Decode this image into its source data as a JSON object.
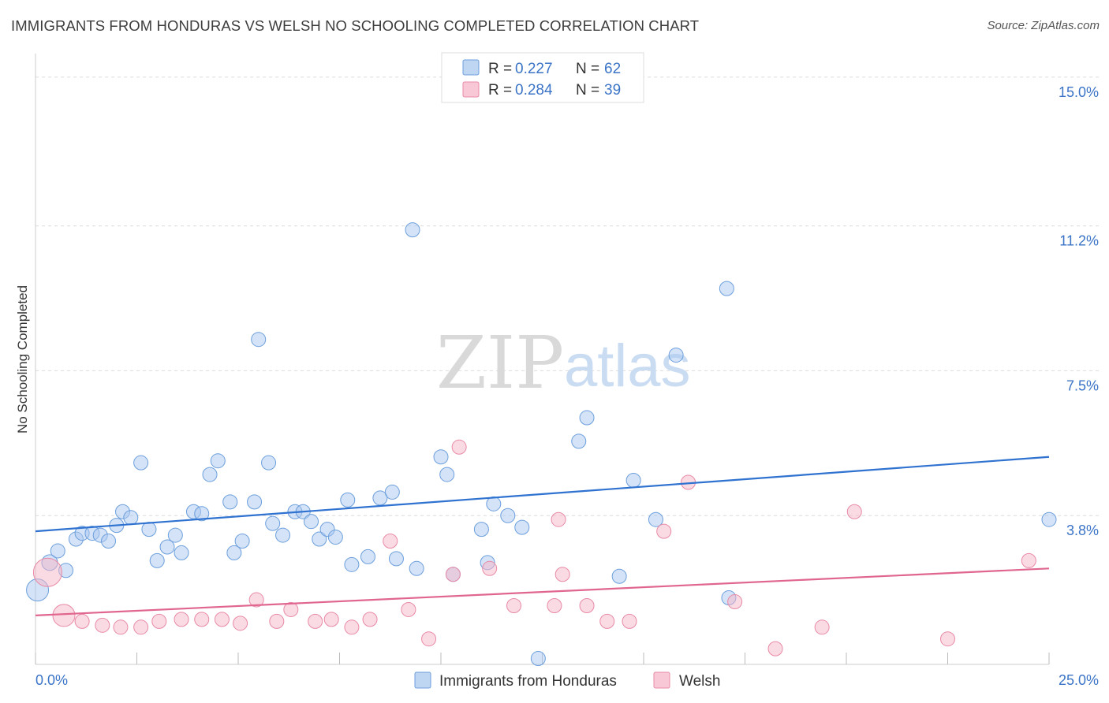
{
  "header": {
    "title": "IMMIGRANTS FROM HONDURAS VS WELSH NO SCHOOLING COMPLETED CORRELATION CHART",
    "source": "Source: ZipAtlas.com"
  },
  "watermark": {
    "zip": "ZIP",
    "atlas": "atlas"
  },
  "legend_top": [
    {
      "r_label": "R = ",
      "r_value": "0.227",
      "n_label": "N = ",
      "n_value": "62",
      "color": "#a9c8ef"
    },
    {
      "r_label": "R = ",
      "r_value": "0.284",
      "n_label": "N = ",
      "n_value": "39",
      "color": "#f5b6c8"
    }
  ],
  "chart_data": {
    "type": "scatter",
    "title": "IMMIGRANTS FROM HONDURAS VS WELSH NO SCHOOLING COMPLETED CORRELATION CHART",
    "xlabel": "",
    "ylabel": "No Schooling Completed",
    "xlim": [
      0,
      25
    ],
    "ylim": [
      0,
      15.4
    ],
    "x_tick_labels": [
      "0.0%",
      "25.0%"
    ],
    "y_ticks": [
      3.8,
      7.5,
      11.2,
      15.0
    ],
    "y_tick_labels": [
      "3.8%",
      "7.5%",
      "11.2%",
      "15.0%"
    ],
    "grid": true,
    "legend_position": "bottom-center",
    "series": [
      {
        "name": "Immigrants from Honduras",
        "color": "#a9c8ef",
        "stroke": "#6c9fdc",
        "trend_color": "#2f72d0",
        "trend": {
          "x0": 0,
          "y0": 3.4,
          "x1": 25,
          "y1": 5.3
        },
        "points": [
          [
            0.05,
            1.9
          ],
          [
            0.35,
            2.6
          ],
          [
            0.55,
            2.9
          ],
          [
            0.75,
            2.4
          ],
          [
            1.0,
            3.2
          ],
          [
            1.15,
            3.35
          ],
          [
            1.4,
            3.35
          ],
          [
            1.6,
            3.3
          ],
          [
            1.8,
            3.15
          ],
          [
            2.0,
            3.55
          ],
          [
            2.15,
            3.9
          ],
          [
            2.35,
            3.75
          ],
          [
            2.6,
            5.15
          ],
          [
            2.8,
            3.45
          ],
          [
            3.0,
            2.65
          ],
          [
            3.25,
            3.0
          ],
          [
            3.45,
            3.3
          ],
          [
            3.6,
            2.85
          ],
          [
            3.9,
            3.9
          ],
          [
            4.1,
            3.85
          ],
          [
            4.3,
            4.85
          ],
          [
            4.5,
            5.2
          ],
          [
            4.8,
            4.15
          ],
          [
            4.9,
            2.85
          ],
          [
            5.1,
            3.15
          ],
          [
            5.4,
            4.15
          ],
          [
            5.5,
            8.3
          ],
          [
            5.75,
            5.15
          ],
          [
            5.85,
            3.6
          ],
          [
            6.1,
            3.3
          ],
          [
            6.4,
            3.9
          ],
          [
            6.6,
            3.9
          ],
          [
            6.8,
            3.65
          ],
          [
            7.0,
            3.2
          ],
          [
            7.2,
            3.45
          ],
          [
            7.4,
            3.25
          ],
          [
            7.7,
            4.2
          ],
          [
            7.8,
            2.55
          ],
          [
            8.2,
            2.75
          ],
          [
            8.5,
            4.25
          ],
          [
            8.8,
            4.4
          ],
          [
            8.9,
            2.7
          ],
          [
            9.3,
            11.1
          ],
          [
            9.4,
            2.45
          ],
          [
            10.0,
            5.3
          ],
          [
            10.15,
            4.85
          ],
          [
            10.3,
            2.3
          ],
          [
            11.0,
            3.45
          ],
          [
            11.15,
            2.6
          ],
          [
            11.3,
            4.1
          ],
          [
            11.65,
            3.8
          ],
          [
            12.0,
            3.5
          ],
          [
            12.4,
            0.15
          ],
          [
            13.4,
            5.7
          ],
          [
            13.6,
            6.3
          ],
          [
            14.4,
            2.25
          ],
          [
            14.75,
            4.7
          ],
          [
            15.3,
            3.7
          ],
          [
            15.8,
            7.9
          ],
          [
            17.05,
            9.6
          ],
          [
            17.1,
            1.7
          ],
          [
            25.0,
            3.7
          ]
        ],
        "sizes": [
          14,
          10,
          9,
          9,
          9,
          9,
          9,
          9,
          9,
          9,
          9,
          9,
          9,
          9,
          9,
          9,
          9,
          9,
          9,
          9,
          9,
          9,
          9,
          9,
          9,
          9,
          9,
          9,
          9,
          9,
          9,
          9,
          9,
          9,
          9,
          9,
          9,
          9,
          9,
          9,
          9,
          9,
          9,
          9,
          9,
          9,
          9,
          9,
          9,
          9,
          9,
          9,
          9,
          9,
          9,
          9,
          9,
          9,
          9,
          9,
          9,
          9
        ]
      },
      {
        "name": "Welsh",
        "color": "#f5b6c8",
        "stroke": "#e88aa6",
        "trend_color": "#e0668f",
        "trend": {
          "x0": 0,
          "y0": 1.25,
          "x1": 25,
          "y1": 2.45
        },
        "points": [
          [
            0.3,
            2.35
          ],
          [
            0.7,
            1.25
          ],
          [
            1.15,
            1.1
          ],
          [
            1.65,
            1.0
          ],
          [
            2.1,
            0.95
          ],
          [
            2.6,
            0.95
          ],
          [
            3.05,
            1.1
          ],
          [
            3.6,
            1.15
          ],
          [
            4.1,
            1.15
          ],
          [
            4.6,
            1.15
          ],
          [
            5.05,
            1.05
          ],
          [
            5.45,
            1.65
          ],
          [
            5.95,
            1.1
          ],
          [
            6.3,
            1.4
          ],
          [
            6.9,
            1.1
          ],
          [
            7.3,
            1.15
          ],
          [
            7.8,
            0.95
          ],
          [
            8.25,
            1.15
          ],
          [
            8.75,
            3.15
          ],
          [
            9.2,
            1.4
          ],
          [
            9.7,
            0.65
          ],
          [
            10.3,
            2.3
          ],
          [
            10.45,
            5.55
          ],
          [
            11.2,
            2.45
          ],
          [
            11.8,
            1.5
          ],
          [
            12.8,
            1.5
          ],
          [
            12.9,
            3.7
          ],
          [
            13.0,
            2.3
          ],
          [
            13.6,
            1.5
          ],
          [
            14.1,
            1.1
          ],
          [
            14.65,
            1.1
          ],
          [
            15.5,
            3.4
          ],
          [
            16.1,
            4.65
          ],
          [
            17.25,
            1.6
          ],
          [
            18.25,
            0.4
          ],
          [
            19.4,
            0.95
          ],
          [
            20.2,
            3.9
          ],
          [
            22.5,
            0.65
          ],
          [
            24.5,
            2.65
          ]
        ],
        "sizes": [
          18,
          14,
          9,
          9,
          9,
          9,
          9,
          9,
          9,
          9,
          9,
          9,
          9,
          9,
          9,
          9,
          9,
          9,
          9,
          9,
          9,
          9,
          9,
          9,
          9,
          9,
          9,
          9,
          9,
          9,
          9,
          9,
          9,
          9,
          9,
          9,
          9,
          9,
          9
        ]
      }
    ]
  }
}
